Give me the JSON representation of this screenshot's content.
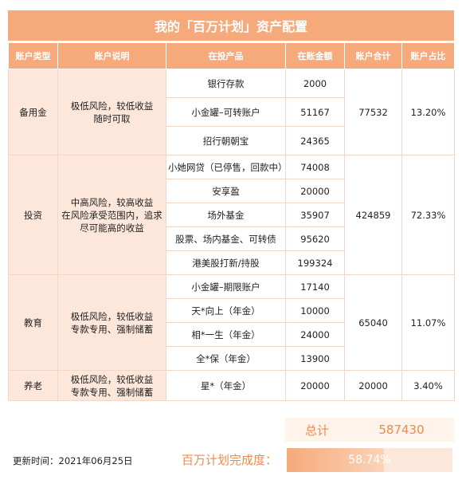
{
  "title": "我的「百万计划」资产配置",
  "columns": [
    "账户类型",
    "账户说明",
    "在投产品",
    "在账金额",
    "账户合计",
    "账户占比"
  ],
  "groups": [
    {
      "type": "备用金",
      "desc_lines": [
        "极低风险，较低收益",
        "随时可取"
      ],
      "total": "77532",
      "ratio": "13.20%",
      "products": [
        {
          "name": "银行存款",
          "amount": "2000"
        },
        {
          "name": "小金罐–可转账户",
          "amount": "51167"
        },
        {
          "name": "招行朝朝宝",
          "amount": "24365"
        }
      ]
    },
    {
      "type": "投资",
      "desc_lines": [
        "中高风险，较高收益",
        "在风险承受范围内，追求",
        "尽可能高的收益"
      ],
      "total": "424859",
      "ratio": "72.33%",
      "products": [
        {
          "name": "小她网贷（已停售，回款中）",
          "amount": "74008"
        },
        {
          "name": "安享盈",
          "amount": "20000"
        },
        {
          "name": "场外基金",
          "amount": "35907"
        },
        {
          "name": "股票、场内基金、可转债",
          "amount": "95620"
        },
        {
          "name": "港美股打新/持股",
          "amount": "199324"
        }
      ]
    },
    {
      "type": "教育",
      "desc_lines": [
        "极低风险，较低收益",
        "专款专用、强制储蓄"
      ],
      "total": "65040",
      "ratio": "11.07%",
      "products": [
        {
          "name": "小金罐–期限账户",
          "amount": "17140"
        },
        {
          "name": "天*向上（年金）",
          "amount": "10000"
        },
        {
          "name": "相*一生（年金）",
          "amount": "24000"
        },
        {
          "name": "全*保（年金）",
          "amount": "13900"
        }
      ]
    },
    {
      "type": "养老",
      "desc_lines": [
        "极低风险，较低收益",
        "专款专用、强制储蓄"
      ],
      "total": "20000",
      "ratio": "3.40%",
      "products": [
        {
          "name": "星*（年金）",
          "amount": "20000"
        }
      ]
    }
  ],
  "total_label": "总计",
  "total_value": "587430",
  "updated": "更新时间：2021年06月25日",
  "progress_label": "百万计划完成度：",
  "progress_text": "58.74%",
  "progress_fraction": 0.5874
}
